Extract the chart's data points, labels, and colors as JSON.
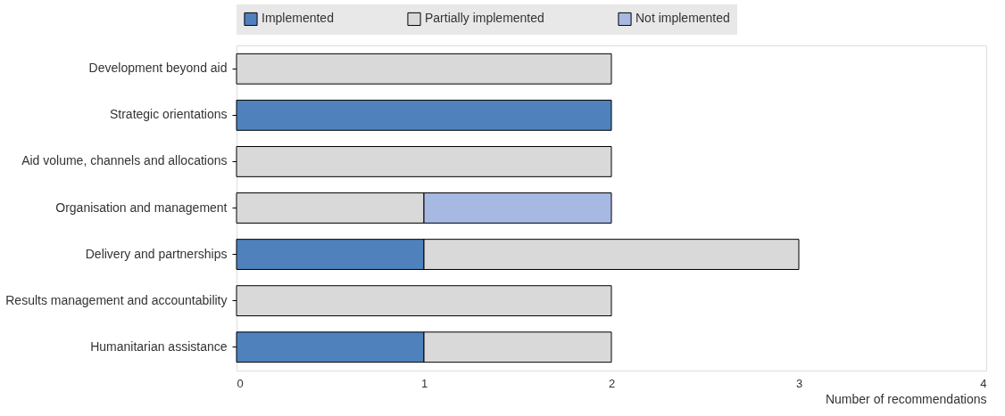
{
  "chart_data": {
    "type": "bar",
    "orientation": "horizontal",
    "stacked": true,
    "legend": "top",
    "xlabel": "Number of recommendations",
    "categories": [
      "Development beyond aid",
      "Strategic orientations",
      "Aid volume, channels and allocations",
      "Organisation and management",
      "Delivery and partnerships",
      "Results management and accountability",
      "Humanitarian assistance"
    ],
    "series": [
      {
        "name": "Implemented",
        "color": "#4f81bd",
        "values": [
          0,
          2,
          0,
          0,
          1,
          0,
          1
        ]
      },
      {
        "name": "Partially implemented",
        "color": "#d9d9d9",
        "values": [
          2,
          0,
          2,
          1,
          2,
          2,
          1
        ]
      },
      {
        "name": "Not implemented",
        "color": "#a7b9e3",
        "values": [
          0,
          0,
          0,
          1,
          0,
          0,
          0
        ]
      }
    ],
    "xlim": [
      0,
      4
    ],
    "xticks": [
      0,
      1,
      2,
      3,
      4
    ],
    "grid": false
  }
}
